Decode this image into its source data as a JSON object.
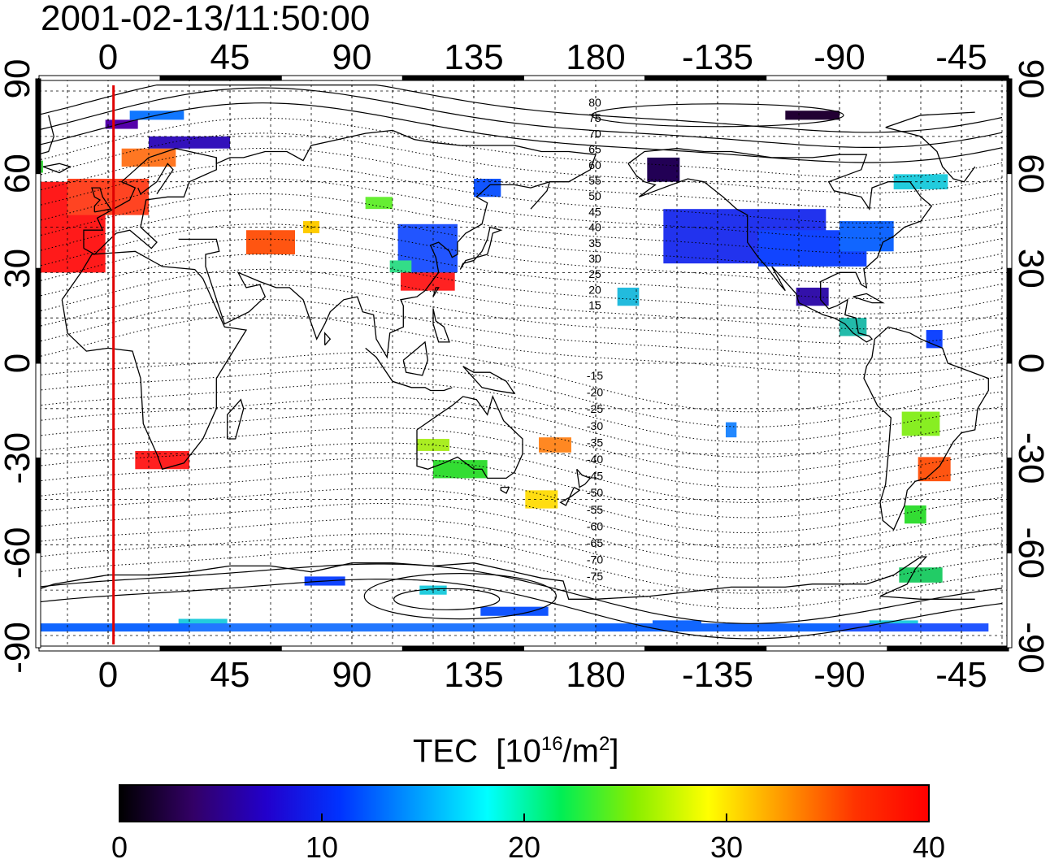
{
  "timestamp": "2001-02-13/11:50:00",
  "map": {
    "lon_ticks": [
      "0",
      "45",
      "90",
      "135",
      "180",
      "-135",
      "-90",
      "-45"
    ],
    "lat_ticks": [
      "90",
      "60",
      "30",
      "0",
      "-30",
      "-60",
      "-90"
    ],
    "contour_labels_north": [
      "80",
      "75",
      "70",
      "65",
      "60",
      "55",
      "50",
      "45",
      "40",
      "35",
      "30",
      "25",
      "20",
      "15"
    ],
    "contour_labels_south": [
      "-15",
      "-20",
      "-25",
      "-30",
      "-35",
      "-40",
      "-45",
      "-50",
      "-55",
      "-60",
      "-65",
      "-70",
      "-75"
    ],
    "colors": {
      "coast": "#000000",
      "grid": "#000000",
      "terminator": "#e00000"
    },
    "patches": [
      {
        "lon": -25,
        "lat": 45,
        "w": 48,
        "h": 30,
        "color": "#ff1a1a"
      },
      {
        "lon": 0,
        "lat": 55,
        "w": 30,
        "h": 12,
        "color": "#ff4422"
      },
      {
        "lon": 15,
        "lat": 68,
        "w": 20,
        "h": 6,
        "color": "#ff7722"
      },
      {
        "lon": -28,
        "lat": 65,
        "w": 8,
        "h": 4,
        "color": "#44dd44"
      },
      {
        "lon": 5,
        "lat": 79,
        "w": 12,
        "h": 3,
        "color": "#5500aa"
      },
      {
        "lon": 18,
        "lat": 82,
        "w": 20,
        "h": 3,
        "color": "#1177ff"
      },
      {
        "lon": 30,
        "lat": 73,
        "w": 30,
        "h": 4,
        "color": "#3311bb"
      },
      {
        "lon": 60,
        "lat": 40,
        "w": 18,
        "h": 8,
        "color": "#ff5511"
      },
      {
        "lon": 75,
        "lat": 45,
        "w": 6,
        "h": 4,
        "color": "#ffcc00"
      },
      {
        "lon": 118,
        "lat": 28,
        "w": 20,
        "h": 8,
        "color": "#ff2222"
      },
      {
        "lon": 118,
        "lat": 38,
        "w": 22,
        "h": 16,
        "color": "#2255ff"
      },
      {
        "lon": 108,
        "lat": 32,
        "w": 8,
        "h": 4,
        "color": "#33dd88"
      },
      {
        "lon": 140,
        "lat": 58,
        "w": 10,
        "h": 6,
        "color": "#1155ff"
      },
      {
        "lon": 100,
        "lat": 53,
        "w": 10,
        "h": 4,
        "color": "#66ee33"
      },
      {
        "lon": 160,
        "lat": -45,
        "w": 12,
        "h": 6,
        "color": "#ffdd11"
      },
      {
        "lon": 165,
        "lat": -27,
        "w": 12,
        "h": 5,
        "color": "#ff8822"
      },
      {
        "lon": 130,
        "lat": -35,
        "w": 20,
        "h": 6,
        "color": "#33dd33"
      },
      {
        "lon": 120,
        "lat": -27,
        "w": 12,
        "h": 4,
        "color": "#aaee22"
      },
      {
        "lon": 20,
        "lat": -32,
        "w": 20,
        "h": 6,
        "color": "#ff2020"
      },
      {
        "lon": -155,
        "lat": 64,
        "w": 12,
        "h": 8,
        "color": "#220055"
      },
      {
        "lon": -125,
        "lat": 42,
        "w": 60,
        "h": 18,
        "color": "#2233ee"
      },
      {
        "lon": -100,
        "lat": 38,
        "w": 40,
        "h": 12,
        "color": "#1144ff"
      },
      {
        "lon": -80,
        "lat": 42,
        "w": 20,
        "h": 10,
        "color": "#1166ff"
      },
      {
        "lon": -100,
        "lat": 22,
        "w": 12,
        "h": 6,
        "color": "#3311aa"
      },
      {
        "lon": -85,
        "lat": 12,
        "w": 10,
        "h": 6,
        "color": "#22bbaa"
      },
      {
        "lon": -60,
        "lat": -20,
        "w": 14,
        "h": 8,
        "color": "#88ee22"
      },
      {
        "lon": -55,
        "lat": -35,
        "w": 12,
        "h": 8,
        "color": "#ff5511"
      },
      {
        "lon": -62,
        "lat": -50,
        "w": 8,
        "h": 6,
        "color": "#33dd33"
      },
      {
        "lon": -60,
        "lat": -70,
        "w": 16,
        "h": 5,
        "color": "#22cc66"
      },
      {
        "lon": -55,
        "lat": 8,
        "w": 6,
        "h": 6,
        "color": "#1144ff"
      },
      {
        "lon": -130,
        "lat": -22,
        "w": 4,
        "h": 5,
        "color": "#2288ff"
      },
      {
        "lon": -168,
        "lat": 22,
        "w": 8,
        "h": 6,
        "color": "#22bbdd"
      },
      {
        "lon": -60,
        "lat": 60,
        "w": 20,
        "h": 5,
        "color": "#22ccdd"
      },
      {
        "lon": -100,
        "lat": 82,
        "w": 20,
        "h": 3,
        "color": "#220033"
      },
      {
        "lon": 80,
        "lat": -72,
        "w": 15,
        "h": 3,
        "color": "#1144ff"
      },
      {
        "lon": 120,
        "lat": -75,
        "w": 10,
        "h": 3,
        "color": "#22ccdd"
      },
      {
        "lon": 150,
        "lat": -82,
        "w": 25,
        "h": 3,
        "color": "#1155ff"
      },
      {
        "lon": 35,
        "lat": -86,
        "w": 18,
        "h": 3,
        "color": "#22ccdd"
      },
      {
        "lon": -150,
        "lat": -86,
        "w": 18,
        "h": 2,
        "color": "#1166ff"
      },
      {
        "lon": -70,
        "lat": -86,
        "w": 18,
        "h": 2,
        "color": "#22ccdd"
      }
    ],
    "south_band": [
      {
        "lon_start": -30,
        "lon_end": 30,
        "color": "#1166ff"
      },
      {
        "lon_start": 30,
        "lon_end": 180,
        "color": "#2277ff"
      },
      {
        "lon_start": -180,
        "lon_end": -90,
        "color": "#1166ff"
      },
      {
        "lon_start": -90,
        "lon_end": -35,
        "color": "#2255ff"
      }
    ]
  },
  "colorbar": {
    "ticks": [
      "0",
      "10",
      "20",
      "30",
      "40"
    ],
    "values": [
      0,
      10,
      20,
      30,
      40
    ],
    "min": 0,
    "max": 40,
    "stops": [
      "#000000",
      "#330066",
      "#2200cc",
      "#0033ff",
      "#0099ff",
      "#00ffff",
      "#00ee55",
      "#88ee00",
      "#ffff00",
      "#ff9900",
      "#ff3300",
      "#ff0000"
    ]
  }
}
